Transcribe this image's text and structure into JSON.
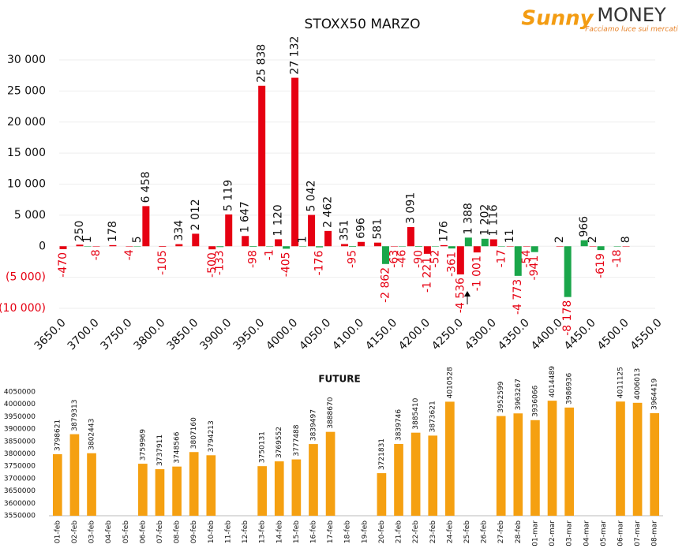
{
  "logo": {
    "brand": "Sunny",
    "name": "MONEY",
    "tagline": "Facciamo luce sui mercati"
  },
  "chart_data": [
    {
      "type": "bar",
      "title": "STOXX50 MARZO",
      "x": [
        3650,
        3675,
        3700,
        3725,
        3750,
        3775,
        3800,
        3825,
        3850,
        3875,
        3900,
        3925,
        3950,
        3975,
        4000,
        4025,
        4050,
        4075,
        4100,
        4125,
        4150,
        4175,
        4200,
        4225,
        4250,
        4275,
        4300,
        4325,
        4350,
        4375,
        4400,
        4425,
        4450,
        4475,
        4500
      ],
      "series": [
        {
          "color": "#e60012",
          "values": [
            -470,
            250,
            -8,
            178,
            -4,
            6458,
            -105,
            334,
            2012,
            -500,
            5119,
            1647,
            25838,
            1120,
            27132,
            5042,
            2462,
            351,
            696,
            581,
            -63,
            3091,
            -1221,
            176,
            -4536,
            -1001,
            1116,
            11,
            -54,
            null,
            2,
            null,
            2,
            null,
            8
          ],
          "value_labels": [
            "-470",
            "250",
            "-8",
            "178",
            "-4",
            "6 458",
            "-105",
            "334",
            "2 012",
            "-500",
            "5 119",
            "1 647",
            "25 838",
            "1 120",
            "27 132",
            "5 042",
            "2 462",
            "351",
            "696",
            "581",
            "-63",
            "3 091",
            "-1 221",
            "176",
            "-4 536",
            "-1 001",
            "1 116",
            "11",
            "-54",
            null,
            "2",
            null,
            "2",
            null,
            "8"
          ]
        },
        {
          "color": "#1aa64a",
          "values": [
            null,
            1,
            null,
            null,
            5,
            null,
            null,
            null,
            null,
            -133,
            null,
            -98,
            -1,
            -405,
            1,
            -176,
            null,
            -95,
            null,
            -2862,
            -46,
            -90,
            -52,
            -361,
            1388,
            1202,
            -17,
            -4773,
            -941,
            null,
            -8178,
            966,
            -619,
            -18,
            null
          ],
          "value_labels": [
            null,
            "1",
            null,
            null,
            "5",
            null,
            null,
            null,
            null,
            "-133",
            null,
            "-98",
            "-1",
            "-405",
            "1",
            "-176",
            null,
            "-95",
            null,
            "-2 862",
            "-46",
            "-90",
            "-52",
            "-361",
            "1 388",
            "1 202",
            "-17",
            "-4 773",
            "-941",
            null,
            "-8 178",
            "966",
            "-619",
            "-18",
            null
          ]
        }
      ],
      "xlim": [
        3650,
        4550
      ],
      "xticks": [
        {
          "value": 3650,
          "label": "3650.0"
        },
        {
          "value": 3700,
          "label": "3700.0"
        },
        {
          "value": 3750,
          "label": "3750.0"
        },
        {
          "value": 3800,
          "label": "3800.0"
        },
        {
          "value": 3850,
          "label": "3850.0"
        },
        {
          "value": 3900,
          "label": "3900.0"
        },
        {
          "value": 3950,
          "label": "3950.0"
        },
        {
          "value": 4000,
          "label": "4000.0"
        },
        {
          "value": 4050,
          "label": "4050.0"
        },
        {
          "value": 4100,
          "label": "4100.0"
        },
        {
          "value": 4150,
          "label": "4150.0"
        },
        {
          "value": 4200,
          "label": "4200.0"
        },
        {
          "value": 4250,
          "label": "4250.0"
        },
        {
          "value": 4300,
          "label": "4300.0"
        },
        {
          "value": 4350,
          "label": "4350.0"
        },
        {
          "value": 4400,
          "label": "4400.0"
        },
        {
          "value": 4450,
          "label": "4450.0"
        },
        {
          "value": 4500,
          "label": "4500.0"
        },
        {
          "value": 4550,
          "label": "4550.0"
        }
      ],
      "ylim": [
        -10000,
        30000
      ],
      "yticks": [
        {
          "value": 30000,
          "label": "30 000"
        },
        {
          "value": 25000,
          "label": "25 000"
        },
        {
          "value": 20000,
          "label": "20 000"
        },
        {
          "value": 15000,
          "label": "15 000"
        },
        {
          "value": 10000,
          "label": "10 000"
        },
        {
          "value": 5000,
          "label": "5 000"
        },
        0,
        {
          "value": -5000,
          "label": "(5 000)"
        },
        {
          "value": -10000,
          "label": "(10 000)"
        }
      ],
      "grid": true
    },
    {
      "type": "bar",
      "title": "FUTURE",
      "color": "#f5a011",
      "categories": [
        "01-feb",
        "02-feb",
        "03-feb",
        "04-feb",
        "05-feb",
        "06-feb",
        "07-feb",
        "08-feb",
        "09-feb",
        "10-feb",
        "11-feb",
        "12-feb",
        "13-feb",
        "14-feb",
        "15-feb",
        "16-feb",
        "17-feb",
        "18-feb",
        "19-feb",
        "20-feb",
        "21-feb",
        "22-feb",
        "23-feb",
        "24-feb",
        "25-feb",
        "26-feb",
        "27-feb",
        "28-feb",
        "01-mar",
        "02-mar",
        "03-mar",
        "04-mar",
        "05-mar",
        "06-mar",
        "07-mar",
        "08-mar"
      ],
      "values": [
        3798621,
        3879313,
        3802443,
        null,
        null,
        3759969,
        3737911,
        3748566,
        3807160,
        3794213,
        null,
        null,
        3750131,
        3769552,
        3777488,
        3839497,
        3888670,
        null,
        null,
        3721831,
        3839746,
        3885410,
        3873621,
        4010528,
        null,
        null,
        3952599,
        3963267,
        3936066,
        4014489,
        3986936,
        null,
        null,
        4011125,
        4006013,
        3964419
      ],
      "ylim": [
        3550000,
        4050000
      ],
      "yticks": [
        3550000,
        3600000,
        3650000,
        3700000,
        3750000,
        3800000,
        3850000,
        3900000,
        3950000,
        4000000,
        4050000
      ],
      "grid": false
    }
  ]
}
